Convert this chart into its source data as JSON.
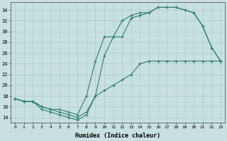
{
  "xlabel": "Humidex (Indice chaleur)",
  "bg_color": "#c8e0e0",
  "grid_color": "#aacccc",
  "line_color": "#2e7d6e",
  "xlim": [
    -0.5,
    23.5
  ],
  "ylim": [
    13.0,
    35.5
  ],
  "xticks": [
    0,
    1,
    2,
    3,
    4,
    5,
    6,
    7,
    8,
    9,
    10,
    11,
    12,
    13,
    14,
    15,
    16,
    17,
    18,
    19,
    20,
    21,
    22,
    23
  ],
  "yticks": [
    14,
    16,
    18,
    20,
    22,
    24,
    26,
    28,
    30,
    32,
    34
  ],
  "line1_x": [
    0,
    1,
    2,
    3,
    4,
    5,
    6,
    7,
    8,
    9,
    10,
    11,
    12,
    13,
    14,
    15,
    16,
    17,
    18,
    19,
    20,
    21,
    22,
    23
  ],
  "line1_y": [
    17.5,
    17.0,
    17.0,
    16.0,
    15.5,
    15.0,
    14.5,
    14.0,
    15.0,
    18.0,
    25.5,
    29.0,
    29.0,
    32.5,
    33.0,
    33.5,
    34.5,
    34.5,
    34.5,
    34.0,
    33.5,
    31.0,
    27.0,
    24.5
  ],
  "line2_x": [
    0,
    1,
    2,
    3,
    4,
    5,
    6,
    7,
    8,
    9,
    10,
    11,
    12,
    13,
    14,
    15,
    16,
    17,
    18,
    19,
    20,
    21,
    22,
    23
  ],
  "line2_y": [
    17.5,
    17.0,
    17.0,
    16.0,
    15.5,
    15.5,
    15.0,
    14.5,
    18.0,
    24.5,
    29.0,
    29.0,
    32.0,
    33.0,
    33.5,
    33.5,
    34.5,
    34.5,
    34.5,
    34.0,
    33.5,
    31.0,
    27.0,
    24.5
  ],
  "line3_x": [
    0,
    1,
    2,
    3,
    4,
    5,
    6,
    7,
    8,
    9,
    10,
    11,
    12,
    13,
    14,
    15,
    16,
    17,
    18,
    19,
    20,
    21,
    22,
    23
  ],
  "line3_y": [
    17.5,
    17.0,
    17.0,
    15.5,
    15.0,
    14.5,
    14.0,
    13.5,
    14.5,
    18.0,
    19.0,
    20.0,
    21.0,
    22.0,
    24.0,
    24.5,
    24.5,
    24.5,
    24.5,
    24.5,
    24.5,
    24.5,
    24.5,
    24.5
  ]
}
